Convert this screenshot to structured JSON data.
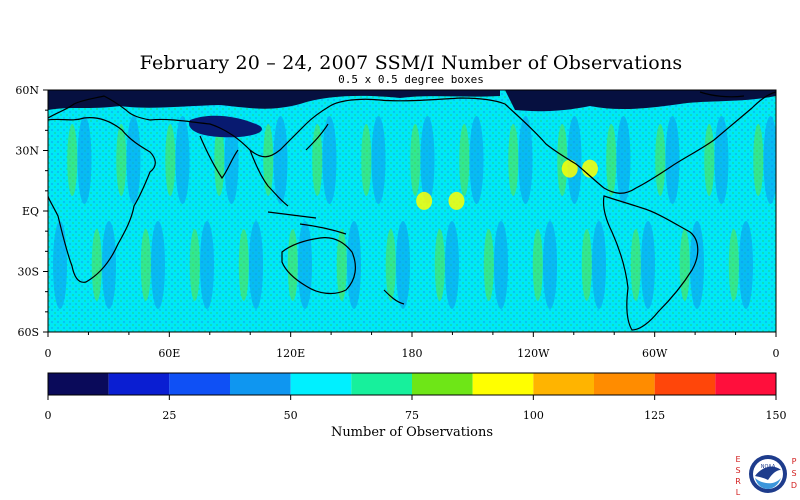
{
  "title": "February 20 – 24, 2007 SSM/I Number of Observations",
  "subtitle": "0.5 x 0.5 degree boxes",
  "map": {
    "lat_labels": [
      "60N",
      "30N",
      "EQ",
      "30S",
      "60S"
    ],
    "lat_values": [
      60,
      30,
      0,
      -30,
      -60
    ],
    "lon_labels": [
      "0",
      "60E",
      "120E",
      "180",
      "120W",
      "60W",
      "0"
    ],
    "lon_values": [
      0,
      60,
      120,
      180,
      240,
      300,
      360
    ],
    "lat_range": [
      -60,
      60
    ],
    "lon_range": [
      0,
      360
    ]
  },
  "colorbar": {
    "label": "Number of Observations",
    "tick_labels": [
      "0",
      "25",
      "50",
      "75",
      "100",
      "125",
      "150"
    ],
    "ticks": [
      0,
      25,
      50,
      75,
      100,
      125,
      150
    ],
    "range": [
      0,
      150
    ],
    "colors": [
      "#0a0a5a",
      "#0a1ed2",
      "#0f50f5",
      "#0f96f0",
      "#00f0ff",
      "#17f09c",
      "#6ee617",
      "#ffff00",
      "#ffb400",
      "#ff8c00",
      "#ff460a",
      "#ff0f3c"
    ]
  },
  "logo": {
    "left_letters": "ESRL",
    "right_letters": "PSD",
    "seal_text": "NOAA",
    "colors": {
      "navy": "#1e3c8c",
      "sky": "#3c96dc",
      "accent": "#d21e1e"
    }
  }
}
